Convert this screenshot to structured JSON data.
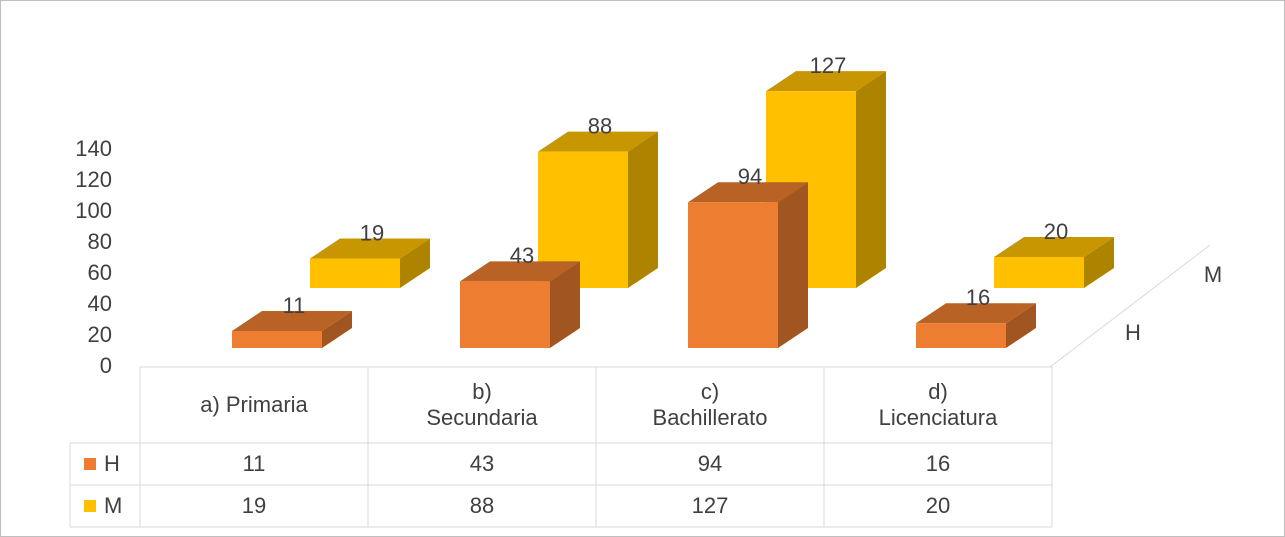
{
  "chart_data": {
    "type": "bar3d",
    "categories": [
      "a) Primaria",
      "b) Secundaria",
      "c) Bachillerato",
      "d) Licenciatura"
    ],
    "series": [
      {
        "name": "H",
        "color": "#ed7d31",
        "values": [
          11,
          43,
          94,
          16
        ]
      },
      {
        "name": "M",
        "color": "#ffc000",
        "values": [
          19,
          88,
          127,
          20
        ]
      }
    ],
    "ylim": [
      0,
      140
    ],
    "yticks": [
      0,
      20,
      40,
      60,
      80,
      100,
      120,
      140
    ],
    "data_table": true
  }
}
